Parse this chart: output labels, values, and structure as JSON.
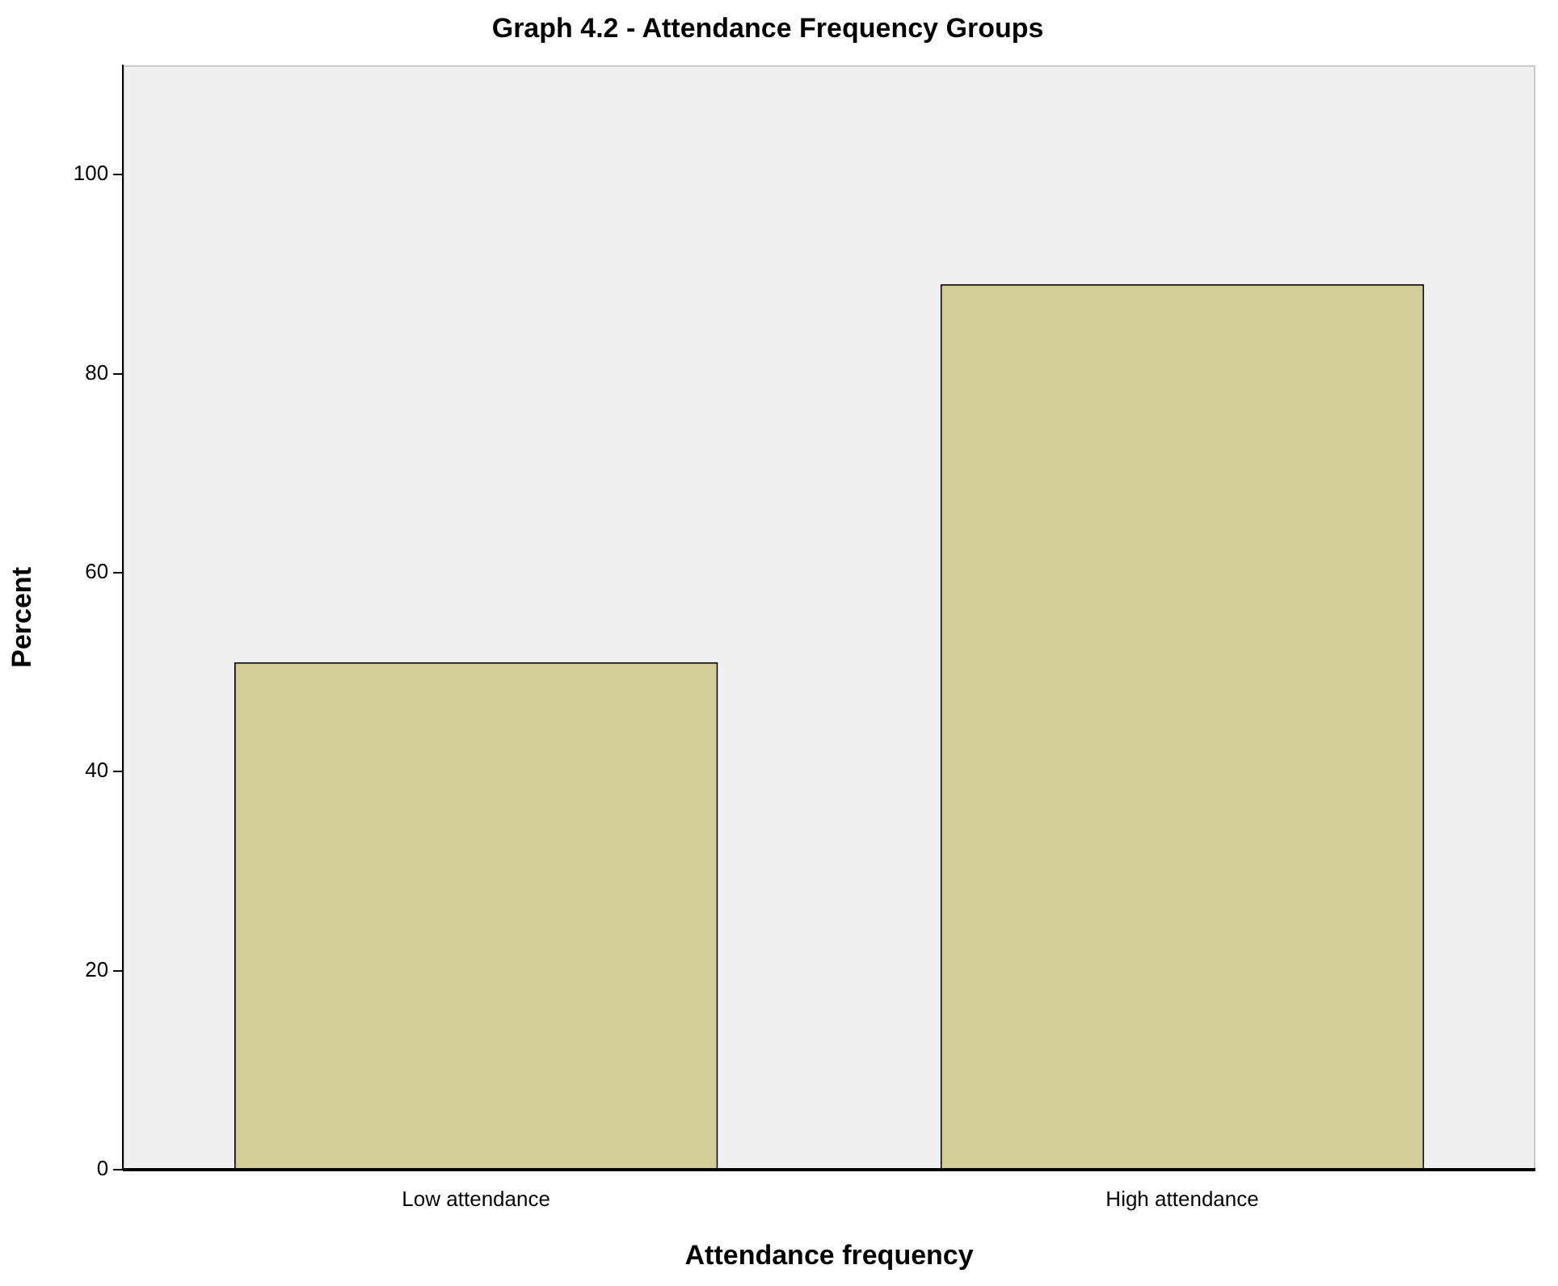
{
  "chart_data": {
    "type": "bar",
    "title": "Graph 4.2 - Attendance Frequency Groups",
    "xlabel": "Attendance frequency",
    "ylabel": "Percent",
    "categories": [
      "Low attendance",
      "High attendance"
    ],
    "values": [
      51,
      89
    ],
    "color": "#d3ce97",
    "ylim": [
      0,
      111
    ],
    "yticks": [
      0,
      20,
      40,
      60,
      80,
      100
    ],
    "grid": false,
    "legend": false
  }
}
